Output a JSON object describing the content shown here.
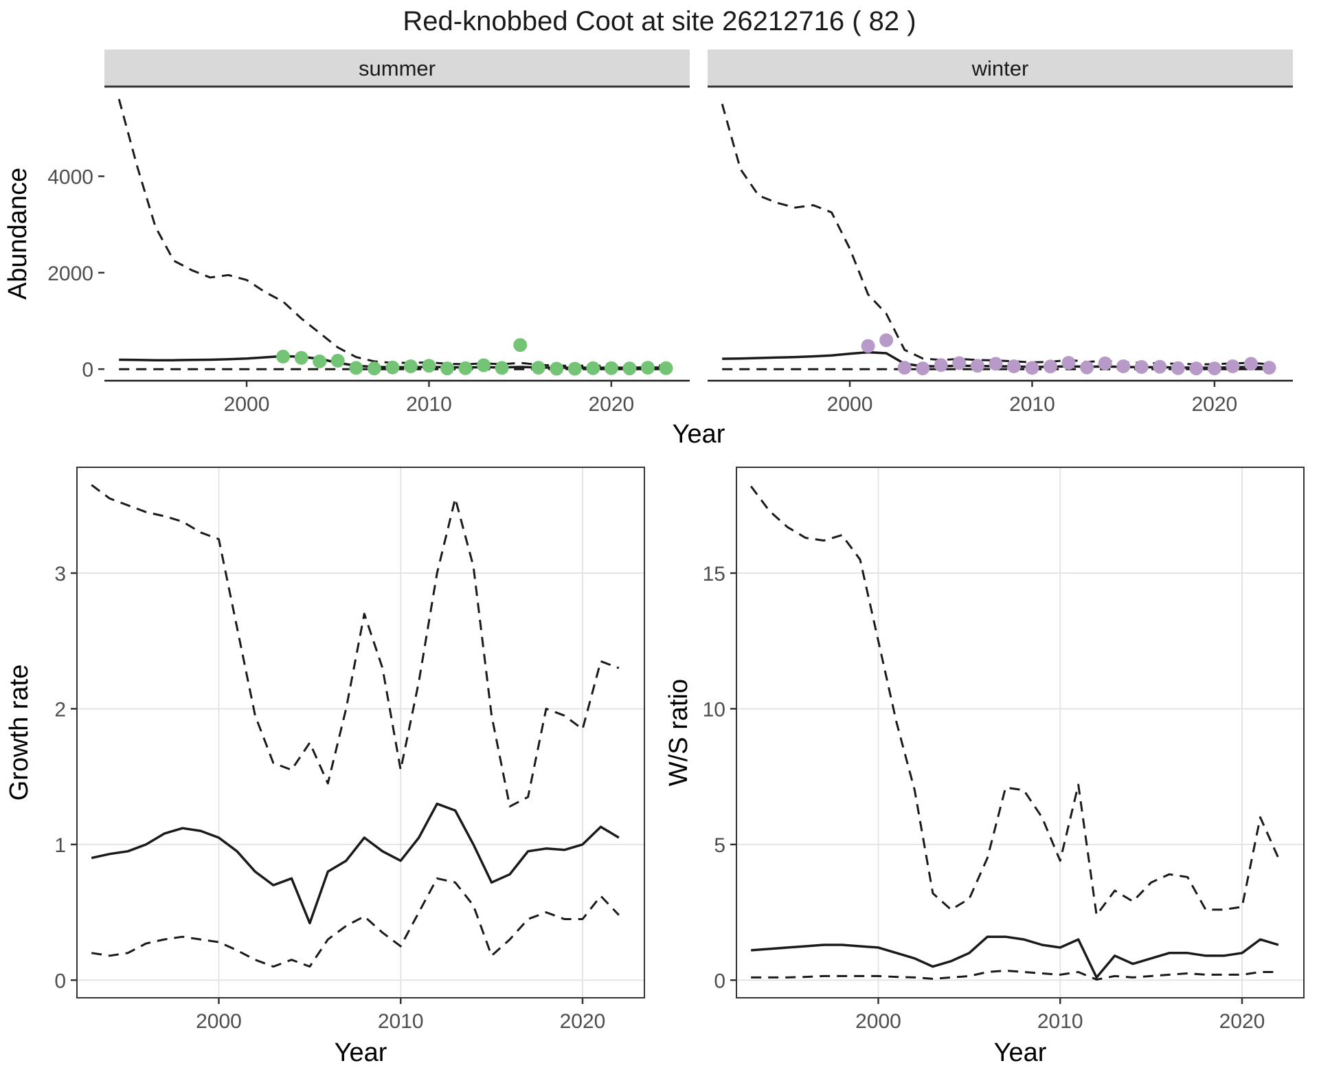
{
  "title": "Red-knobbed Coot at site 26212716 ( 82 )",
  "colors": {
    "summer_point": "#74c476",
    "winter_point": "#b79ac8",
    "line": "#1a1a1a",
    "strip_bg": "#d9d9d9",
    "strip_text": "#1a1a1a",
    "axis_text": "#4d4d4d",
    "axis_title": "#000000",
    "grid": "#e4e4e4",
    "panel_border": "#333333"
  },
  "chart_data": [
    {
      "id": "abundance",
      "type": "line",
      "title": "Red-knobbed Coot at site 26212716 ( 82 )",
      "xlabel": "Year",
      "ylabel": "Abundance",
      "xlim": [
        1992.2,
        2024.3
      ],
      "ylim": [
        -240,
        5860
      ],
      "xticks": [
        2000,
        2010,
        2020
      ],
      "yticks": [
        0,
        2000,
        4000
      ],
      "grid": false,
      "legend": "none",
      "x": [
        1993,
        1994,
        1995,
        1996,
        1997,
        1998,
        1999,
        2000,
        2001,
        2002,
        2003,
        2004,
        2005,
        2006,
        2007,
        2008,
        2009,
        2010,
        2011,
        2012,
        2013,
        2014,
        2015,
        2016,
        2017,
        2018,
        2019,
        2020,
        2021,
        2022,
        2023
      ],
      "facets": [
        {
          "label": "summer",
          "point_color": "#74c476",
          "series": [
            {
              "name": "upper_ci",
              "style": "dashed",
              "values": [
                5600,
                4200,
                2950,
                2250,
                2050,
                1900,
                1950,
                1850,
                1600,
                1400,
                1050,
                750,
                450,
                250,
                160,
                130,
                130,
                140,
                110,
                100,
                120,
                100,
                130,
                90,
                70,
                70,
                70,
                70,
                70,
                80,
                70
              ]
            },
            {
              "name": "estimate",
              "style": "solid",
              "values": [
                195,
                190,
                185,
                185,
                190,
                195,
                205,
                220,
                245,
                270,
                255,
                215,
                130,
                70,
                45,
                40,
                40,
                45,
                40,
                35,
                40,
                35,
                45,
                35,
                30,
                30,
                30,
                30,
                30,
                35,
                30
              ]
            },
            {
              "name": "lower_ci",
              "style": "dashed",
              "values": [
                0,
                0,
                0,
                0,
                0,
                0,
                0,
                0,
                0,
                0,
                0,
                0,
                0,
                0,
                0,
                0,
                0,
                0,
                0,
                0,
                0,
                0,
                0,
                0,
                0,
                0,
                0,
                0,
                0,
                0,
                0
              ]
            }
          ],
          "points": {
            "x": [
              2002,
              2003,
              2004,
              2005,
              2006,
              2007,
              2008,
              2009,
              2010,
              2011,
              2012,
              2013,
              2014,
              2015,
              2016,
              2017,
              2018,
              2019,
              2020,
              2021,
              2022,
              2023
            ],
            "y": [
              260,
              235,
              160,
              175,
              25,
              15,
              35,
              60,
              70,
              15,
              20,
              80,
              25,
              500,
              30,
              10,
              10,
              20,
              20,
              15,
              30,
              20
            ]
          }
        },
        {
          "label": "winter",
          "point_color": "#b79ac8",
          "series": [
            {
              "name": "upper_ci",
              "style": "dashed",
              "values": [
                5500,
                4150,
                3600,
                3450,
                3350,
                3400,
                3250,
                2500,
                1550,
                1150,
                400,
                220,
                190,
                210,
                190,
                180,
                160,
                140,
                150,
                190,
                150,
                170,
                140,
                130,
                120,
                110,
                100,
                100,
                120,
                130,
                100
              ]
            },
            {
              "name": "estimate",
              "style": "solid",
              "values": [
                215,
                220,
                230,
                240,
                250,
                265,
                285,
                320,
                350,
                330,
                110,
                60,
                60,
                70,
                65,
                60,
                55,
                45,
                50,
                60,
                50,
                55,
                45,
                40,
                40,
                35,
                30,
                30,
                40,
                45,
                35
              ]
            },
            {
              "name": "lower_ci",
              "style": "dashed",
              "values": [
                0,
                0,
                0,
                0,
                0,
                0,
                0,
                0,
                0,
                0,
                0,
                0,
                0,
                0,
                0,
                0,
                0,
                0,
                0,
                0,
                0,
                0,
                0,
                0,
                0,
                0,
                0,
                0,
                0,
                0,
                0
              ]
            }
          ],
          "points": {
            "x": [
              2001,
              2002,
              2003,
              2004,
              2005,
              2006,
              2007,
              2008,
              2009,
              2010,
              2011,
              2012,
              2013,
              2014,
              2015,
              2016,
              2017,
              2018,
              2019,
              2020,
              2021,
              2022,
              2023
            ],
            "y": [
              480,
              600,
              30,
              15,
              85,
              125,
              70,
              110,
              60,
              25,
              55,
              130,
              35,
              120,
              60,
              45,
              50,
              20,
              15,
              15,
              60,
              110,
              30
            ]
          }
        }
      ]
    },
    {
      "id": "growth_rate",
      "type": "line",
      "title": "",
      "xlabel": "Year",
      "ylabel": "Growth rate",
      "xlim": [
        1992.2,
        2023.4
      ],
      "ylim": [
        -0.13,
        3.78
      ],
      "xticks": [
        2000,
        2010,
        2020
      ],
      "yticks": [
        0,
        1,
        2,
        3
      ],
      "grid": true,
      "legend": "none",
      "x": [
        1993,
        1994,
        1995,
        1996,
        1997,
        1998,
        1999,
        2000,
        2001,
        2002,
        2003,
        2004,
        2005,
        2006,
        2007,
        2008,
        2009,
        2010,
        2011,
        2012,
        2013,
        2014,
        2015,
        2016,
        2017,
        2018,
        2019,
        2020,
        2021,
        2022
      ],
      "series": [
        {
          "name": "upper_ci",
          "style": "dashed",
          "values": [
            3.65,
            3.55,
            3.5,
            3.45,
            3.42,
            3.38,
            3.3,
            3.25,
            2.6,
            1.95,
            1.6,
            1.55,
            1.75,
            1.45,
            2.0,
            2.7,
            2.3,
            1.55,
            2.2,
            3.0,
            3.55,
            3.05,
            1.95,
            1.28,
            1.35,
            2.0,
            1.95,
            1.85,
            2.35,
            2.3
          ]
        },
        {
          "name": "estimate",
          "style": "solid",
          "values": [
            0.9,
            0.93,
            0.95,
            1.0,
            1.08,
            1.12,
            1.1,
            1.05,
            0.95,
            0.8,
            0.7,
            0.75,
            0.42,
            0.8,
            0.88,
            1.05,
            0.95,
            0.88,
            1.05,
            1.3,
            1.25,
            1.0,
            0.72,
            0.78,
            0.95,
            0.97,
            0.96,
            1.0,
            1.13,
            1.05
          ]
        },
        {
          "name": "lower_ci",
          "style": "dashed",
          "values": [
            0.2,
            0.18,
            0.2,
            0.27,
            0.3,
            0.32,
            0.3,
            0.28,
            0.22,
            0.15,
            0.1,
            0.15,
            0.1,
            0.3,
            0.4,
            0.47,
            0.35,
            0.25,
            0.5,
            0.75,
            0.72,
            0.55,
            0.18,
            0.3,
            0.45,
            0.5,
            0.45,
            0.45,
            0.62,
            0.48
          ]
        }
      ]
    },
    {
      "id": "ws_ratio",
      "type": "line",
      "title": "",
      "xlabel": "Year",
      "ylabel": "W/S ratio",
      "xlim": [
        1992.2,
        2023.4
      ],
      "ylim": [
        -0.65,
        18.9
      ],
      "xticks": [
        2000,
        2010,
        2020
      ],
      "yticks": [
        0,
        5,
        10,
        15
      ],
      "grid": true,
      "legend": "none",
      "x": [
        1993,
        1994,
        1995,
        1996,
        1997,
        1998,
        1999,
        2000,
        2001,
        2002,
        2003,
        2004,
        2005,
        2006,
        2007,
        2008,
        2009,
        2010,
        2011,
        2012,
        2013,
        2014,
        2015,
        2016,
        2017,
        2018,
        2019,
        2020,
        2021,
        2022
      ],
      "series": [
        {
          "name": "upper_ci",
          "style": "dashed",
          "values": [
            18.2,
            17.3,
            16.7,
            16.3,
            16.2,
            16.4,
            15.5,
            12.5,
            9.5,
            7.0,
            3.2,
            2.6,
            3.0,
            4.5,
            7.1,
            7.0,
            6.0,
            4.4,
            7.2,
            2.4,
            3.3,
            2.9,
            3.6,
            3.9,
            3.8,
            2.6,
            2.6,
            2.7,
            6.0,
            4.5
          ]
        },
        {
          "name": "estimate",
          "style": "solid",
          "values": [
            1.1,
            1.15,
            1.2,
            1.25,
            1.3,
            1.3,
            1.25,
            1.2,
            1.0,
            0.8,
            0.5,
            0.7,
            1.0,
            1.6,
            1.6,
            1.5,
            1.3,
            1.2,
            1.5,
            0.1,
            0.9,
            0.6,
            0.8,
            1.0,
            1.0,
            0.9,
            0.9,
            1.0,
            1.5,
            1.3
          ]
        },
        {
          "name": "lower_ci",
          "style": "dashed",
          "values": [
            0.1,
            0.1,
            0.1,
            0.12,
            0.15,
            0.15,
            0.15,
            0.15,
            0.12,
            0.1,
            0.05,
            0.1,
            0.15,
            0.3,
            0.35,
            0.3,
            0.25,
            0.2,
            0.3,
            0.02,
            0.15,
            0.1,
            0.15,
            0.2,
            0.25,
            0.2,
            0.2,
            0.2,
            0.3,
            0.3
          ]
        }
      ]
    }
  ]
}
